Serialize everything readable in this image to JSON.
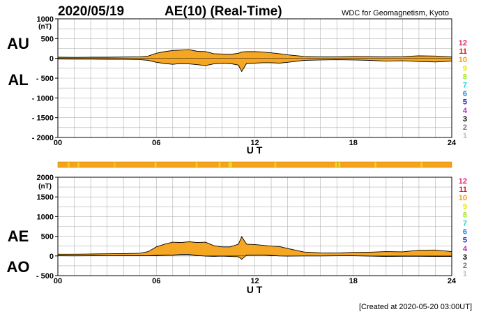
{
  "header": {
    "date": "2020/05/19",
    "title": "AE(10) (Real-Time)",
    "source": "WDC for Geomagnetism, Kyoto"
  },
  "footer": {
    "created": "[Created at 2020-05-20 03:00UT]"
  },
  "colors": {
    "fill": "#f5a623",
    "grid": "#b0b0b0",
    "station_bar": "#f7a21b"
  },
  "station_legend": [
    {
      "label": "12",
      "color": "#e8196b"
    },
    {
      "label": "11",
      "color": "#e8151e"
    },
    {
      "label": "10",
      "color": "#f59a14"
    },
    {
      "label": "9",
      "color": "#e3e01d"
    },
    {
      "label": "8",
      "color": "#9be81b"
    },
    {
      "label": "7",
      "color": "#19d6d6"
    },
    {
      "label": "6",
      "color": "#1b7fe8"
    },
    {
      "label": "5",
      "color": "#2323c8"
    },
    {
      "label": "4",
      "color": "#c81ec8"
    },
    {
      "label": "3",
      "color": "#000000"
    },
    {
      "label": "2",
      "color": "#7a7a7a"
    },
    {
      "label": "1",
      "color": "#bdbdbd"
    }
  ],
  "station_bar": {
    "highlights": [
      {
        "t": 0.6,
        "color": "#f7d21b"
      },
      {
        "t": 1.2,
        "color": "#f7d21b"
      },
      {
        "t": 3.4,
        "color": "#f7c21b"
      },
      {
        "t": 5.9,
        "color": "#f7d21b"
      },
      {
        "t": 8.4,
        "color": "#f7d21b"
      },
      {
        "t": 9.8,
        "color": "#f7d21b"
      },
      {
        "t": 10.4,
        "color": "#e3e01d"
      },
      {
        "t": 10.5,
        "color": "#e3e01d"
      },
      {
        "t": 13.2,
        "color": "#f7d21b"
      },
      {
        "t": 16.9,
        "color": "#e3e01d"
      },
      {
        "t": 17.1,
        "color": "#e3e01d"
      },
      {
        "t": 19.3,
        "color": "#f7d21b"
      },
      {
        "t": 22.1,
        "color": "#f7d21b"
      }
    ]
  },
  "chart_data": [
    {
      "type": "area",
      "labels": [
        "AU",
        "AL"
      ],
      "xlabel": "U T",
      "ylabel": "(nT)",
      "x_ticks": [
        "00",
        "06",
        "12",
        "18",
        "24"
      ],
      "y_ticks": [
        "1000",
        "500",
        "0",
        "- 500",
        "- 1000",
        "- 1500",
        "- 2000"
      ],
      "xlim": [
        0,
        24
      ],
      "ylim": [
        -2000,
        1000
      ],
      "grid": true,
      "x": [
        0,
        1,
        2,
        3,
        4,
        5,
        5.5,
        6,
        6.5,
        7,
        7.5,
        8,
        8.5,
        9,
        9.5,
        10,
        10.5,
        11,
        11.2,
        11.5,
        12,
        12.5,
        13,
        13.5,
        14,
        15,
        16,
        17,
        18,
        19,
        20,
        21,
        22,
        23,
        24
      ],
      "series": [
        {
          "values": [
            30,
            25,
            30,
            30,
            35,
            40,
            60,
            130,
            170,
            200,
            210,
            220,
            180,
            170,
            120,
            110,
            100,
            130,
            160,
            170,
            170,
            160,
            140,
            120,
            90,
            50,
            40,
            40,
            50,
            45,
            40,
            45,
            65,
            60,
            40
          ]
        },
        {
          "values": [
            -15,
            -20,
            -20,
            -25,
            -25,
            -30,
            -50,
            -100,
            -130,
            -150,
            -130,
            -140,
            -160,
            -180,
            -140,
            -120,
            -130,
            -170,
            -330,
            -130,
            -120,
            -110,
            -110,
            -120,
            -100,
            -50,
            -40,
            -35,
            -40,
            -50,
            -70,
            -60,
            -80,
            -90,
            -70
          ]
        }
      ]
    },
    {
      "type": "area",
      "labels": [
        "AE",
        "AO"
      ],
      "xlabel": "U T",
      "ylabel": "(nT)",
      "x_ticks": [
        "00",
        "06",
        "12",
        "18",
        "24"
      ],
      "y_ticks": [
        "2000",
        "1500",
        "1000",
        "500",
        "0",
        "- 500"
      ],
      "xlim": [
        0,
        24
      ],
      "ylim": [
        -500,
        2000
      ],
      "grid": true,
      "x": [
        0,
        1,
        2,
        3,
        4,
        5,
        5.5,
        6,
        6.5,
        7,
        7.5,
        8,
        8.5,
        9,
        9.5,
        10,
        10.5,
        11,
        11.2,
        11.5,
        12,
        12.5,
        13,
        13.5,
        14,
        15,
        16,
        17,
        18,
        19,
        20,
        21,
        22,
        23,
        24
      ],
      "series": [
        {
          "values": [
            45,
            45,
            50,
            55,
            60,
            70,
            110,
            230,
            300,
            350,
            340,
            360,
            340,
            350,
            260,
            230,
            230,
            300,
            490,
            300,
            290,
            270,
            250,
            240,
            190,
            100,
            80,
            75,
            90,
            95,
            110,
            105,
            145,
            150,
            110
          ]
        },
        {
          "values": [
            5,
            2,
            5,
            3,
            5,
            5,
            5,
            15,
            20,
            25,
            40,
            40,
            10,
            -5,
            -10,
            -5,
            -15,
            -20,
            -85,
            20,
            25,
            25,
            15,
            0,
            -5,
            0,
            0,
            3,
            5,
            -3,
            -15,
            -8,
            -8,
            -15,
            -15
          ]
        }
      ]
    }
  ]
}
